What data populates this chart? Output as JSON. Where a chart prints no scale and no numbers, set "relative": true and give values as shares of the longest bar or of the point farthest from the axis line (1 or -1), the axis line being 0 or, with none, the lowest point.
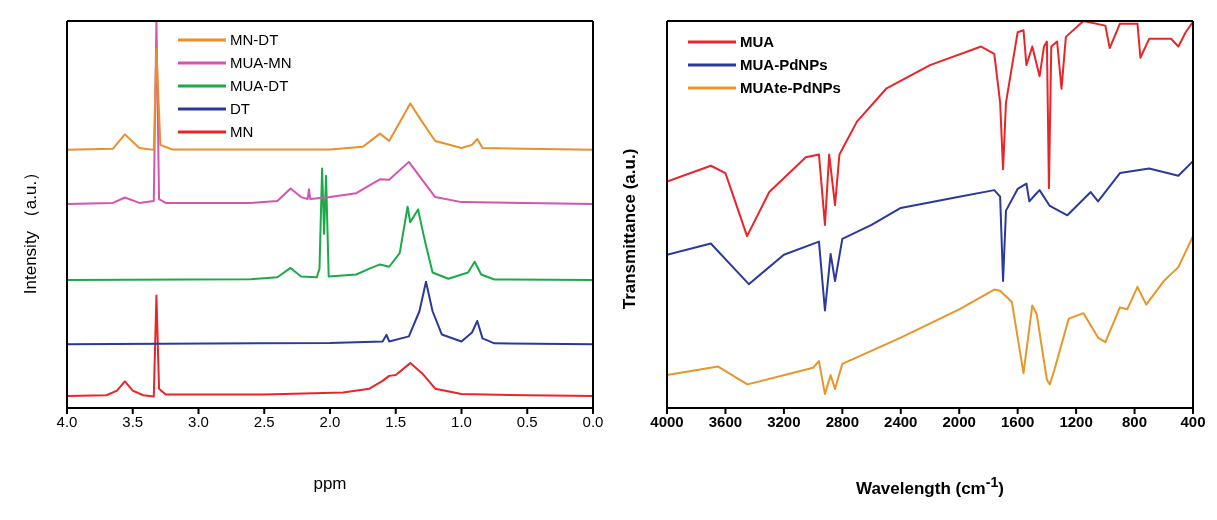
{
  "chart_data": [
    {
      "type": "line",
      "relative": true,
      "xlabel": "ppm",
      "ylabel": "Intensity （a.u.）",
      "xlim": [
        4,
        0
      ],
      "xticks": [
        {
          "value": 4,
          "label": "4.0"
        },
        3.5,
        {
          "value": 3,
          "label": "3.0"
        },
        2.5,
        {
          "value": 2,
          "label": "2.0"
        },
        1.5,
        {
          "value": 1,
          "label": "1.0"
        },
        0.5,
        {
          "value": 0,
          "label": "0.0"
        }
      ],
      "legend": "top",
      "series": [
        {
          "name": "MN-DT",
          "color": "#e8902a",
          "x": [
            4.0,
            3.65,
            3.56,
            3.45,
            3.34,
            3.32,
            3.29,
            3.2,
            2.0,
            1.75,
            1.62,
            1.55,
            1.45,
            1.39,
            1.3,
            1.2,
            1.0,
            0.92,
            0.88,
            0.84,
            0.0
          ],
          "values": [
            0.667,
            0.67,
            0.707,
            0.672,
            0.667,
            0.927,
            0.68,
            0.668,
            0.668,
            0.675,
            0.709,
            0.69,
            0.75,
            0.787,
            0.74,
            0.69,
            0.672,
            0.68,
            0.695,
            0.672,
            0.667
          ]
        },
        {
          "name": "MUA-MN",
          "color": "#d454b0",
          "x": [
            4.0,
            3.65,
            3.56,
            3.45,
            3.34,
            3.32,
            3.3,
            3.25,
            2.6,
            2.4,
            2.3,
            2.22,
            2.17,
            2.16,
            2.15,
            2.0,
            1.8,
            1.7,
            1.62,
            1.55,
            1.4,
            1.3,
            1.2,
            1.0,
            0.0
          ],
          "values": [
            0.527,
            0.53,
            0.544,
            0.53,
            0.535,
            1.0,
            0.54,
            0.53,
            0.53,
            0.535,
            0.567,
            0.545,
            0.54,
            0.565,
            0.54,
            0.545,
            0.555,
            0.575,
            0.591,
            0.59,
            0.636,
            0.59,
            0.545,
            0.532,
            0.527
          ]
        },
        {
          "name": "MUA-DT",
          "color": "#1aaa4a",
          "x": [
            4.0,
            2.6,
            2.4,
            2.3,
            2.22,
            2.1,
            2.08,
            2.06,
            2.045,
            2.03,
            2.01,
            1.8,
            1.7,
            1.62,
            1.55,
            1.47,
            1.41,
            1.39,
            1.33,
            1.29,
            1.27,
            1.22,
            1.1,
            0.95,
            0.9,
            0.85,
            0.75,
            0.0
          ],
          "values": [
            0.331,
            0.333,
            0.338,
            0.362,
            0.34,
            0.338,
            0.36,
            0.619,
            0.45,
            0.6,
            0.34,
            0.345,
            0.36,
            0.371,
            0.365,
            0.4,
            0.52,
            0.48,
            0.513,
            0.45,
            0.42,
            0.35,
            0.334,
            0.35,
            0.378,
            0.345,
            0.332,
            0.331
          ]
        },
        {
          "name": "DT",
          "color": "#2b3a9a",
          "x": [
            4.0,
            2.0,
            1.6,
            1.57,
            1.55,
            1.4,
            1.32,
            1.27,
            1.22,
            1.15,
            1.0,
            0.92,
            0.88,
            0.84,
            0.75,
            0.0
          ],
          "values": [
            0.165,
            0.168,
            0.172,
            0.189,
            0.172,
            0.185,
            0.25,
            0.326,
            0.25,
            0.19,
            0.172,
            0.195,
            0.225,
            0.18,
            0.167,
            0.165
          ]
        },
        {
          "name": "MN",
          "color": "#e8262a",
          "x": [
            4.0,
            3.7,
            3.62,
            3.56,
            3.5,
            3.42,
            3.34,
            3.32,
            3.3,
            3.25,
            2.5,
            1.9,
            1.7,
            1.6,
            1.55,
            1.5,
            1.39,
            1.3,
            1.2,
            1.0,
            0.5,
            0.0
          ],
          "values": [
            0.031,
            0.033,
            0.045,
            0.069,
            0.045,
            0.033,
            0.03,
            0.291,
            0.05,
            0.035,
            0.035,
            0.04,
            0.05,
            0.07,
            0.083,
            0.085,
            0.116,
            0.09,
            0.05,
            0.036,
            0.033,
            0.031
          ]
        }
      ]
    },
    {
      "type": "line",
      "relative": true,
      "xlabel": "Wavelength (cm$^{-1}$)",
      "ylabel": "Transmittance (a.u.)",
      "xlim": [
        4000,
        400
      ],
      "xticks": [
        4000,
        3600,
        3200,
        2800,
        2400,
        2000,
        1600,
        1200,
        800,
        400
      ],
      "legend": "top left",
      "series": [
        {
          "name": "MUA",
          "color": "#e8262a",
          "x": [
            4000,
            3700,
            3600,
            3452,
            3300,
            3050,
            2960,
            2919,
            2890,
            2850,
            2820,
            2700,
            2500,
            2200,
            1850,
            1760,
            1720,
            1700,
            1680,
            1600,
            1560,
            1540,
            1500,
            1450,
            1420,
            1400,
            1386,
            1370,
            1330,
            1300,
            1270,
            1150,
            1000,
            970,
            900,
            780,
            760,
            700,
            550,
            500,
            450,
            400
          ],
          "values": [
            0.585,
            0.626,
            0.607,
            0.444,
            0.558,
            0.648,
            0.655,
            0.473,
            0.655,
            0.524,
            0.655,
            0.74,
            0.825,
            0.886,
            0.934,
            0.915,
            0.789,
            0.617,
            0.789,
            0.971,
            0.976,
            0.886,
            0.934,
            0.857,
            0.934,
            0.947,
            0.568,
            0.934,
            0.947,
            0.825,
            0.959,
            1.0,
            0.988,
            0.93,
            0.993,
            0.993,
            0.905,
            0.954,
            0.954,
            0.934,
            0.971,
            0.998
          ]
        },
        {
          "name": "MUA-PdNPs",
          "color": "#2b3a9a",
          "x": [
            4000,
            3700,
            3440,
            3200,
            2960,
            2919,
            2880,
            2850,
            2800,
            2600,
            2400,
            2000,
            1760,
            1720,
            1700,
            1680,
            1600,
            1540,
            1520,
            1480,
            1450,
            1380,
            1260,
            1100,
            1050,
            900,
            700,
            500,
            400
          ],
          "values": [
            0.396,
            0.425,
            0.32,
            0.396,
            0.43,
            0.252,
            0.398,
            0.328,
            0.437,
            0.473,
            0.517,
            0.546,
            0.563,
            0.546,
            0.328,
            0.51,
            0.566,
            0.58,
            0.534,
            0.551,
            0.563,
            0.522,
            0.498,
            0.558,
            0.534,
            0.607,
            0.619,
            0.6,
            0.638
          ]
        },
        {
          "name": "MUAte-PdNPs",
          "color": "#e8962a",
          "x": [
            4000,
            3650,
            3450,
            3000,
            2960,
            2919,
            2880,
            2850,
            2800,
            2400,
            2000,
            1760,
            1720,
            1640,
            1560,
            1500,
            1470,
            1400,
            1380,
            1350,
            1250,
            1150,
            1050,
            1000,
            900,
            850,
            780,
            720,
            600,
            500,
            400
          ],
          "values": [
            0.085,
            0.107,
            0.061,
            0.104,
            0.121,
            0.036,
            0.085,
            0.049,
            0.114,
            0.182,
            0.255,
            0.306,
            0.303,
            0.274,
            0.09,
            0.265,
            0.243,
            0.073,
            0.061,
            0.097,
            0.231,
            0.245,
            0.182,
            0.17,
            0.26,
            0.255,
            0.313,
            0.267,
            0.328,
            0.364,
            0.444
          ]
        }
      ]
    }
  ]
}
